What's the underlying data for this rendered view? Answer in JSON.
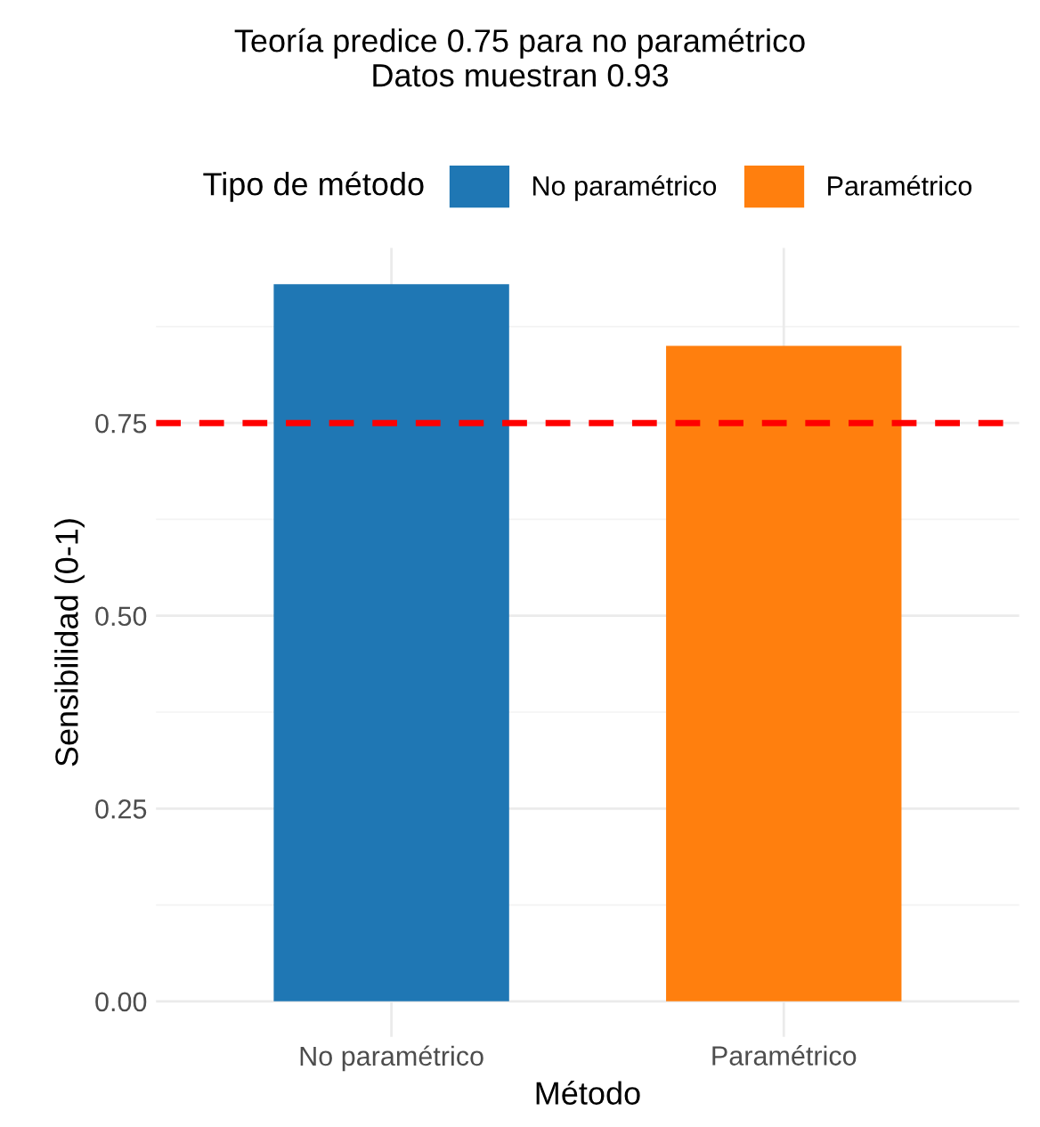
{
  "chart_data": {
    "type": "bar",
    "title": "Teoría predice 0.75 para no paramétrico\nDatos muestran 0.93",
    "categories": [
      "No paramétrico",
      "Paramétrico"
    ],
    "series": [
      {
        "name": "No paramétrico",
        "color": "#1f77b4",
        "values": [
          0.93,
          null
        ]
      },
      {
        "name": "Paramétrico",
        "color": "#ff7f0e",
        "values": [
          null,
          0.85
        ]
      }
    ],
    "xlabel": "Método",
    "ylabel": "Sensibilidad (0-1)",
    "legend_title": "Tipo de método",
    "ylim": [
      -0.046,
      0.977
    ],
    "yticks": [
      {
        "value": 0,
        "label": "0.00"
      },
      {
        "value": 0.25,
        "label": "0.25"
      },
      {
        "value": 0.5,
        "label": "0.50"
      },
      {
        "value": 0.75,
        "label": "0.75"
      }
    ],
    "ref_lines": [
      {
        "axis": "y",
        "value": 0.75,
        "color": "#ff0000",
        "line_style": "dashed"
      }
    ],
    "grid": true,
    "legend": "top"
  }
}
